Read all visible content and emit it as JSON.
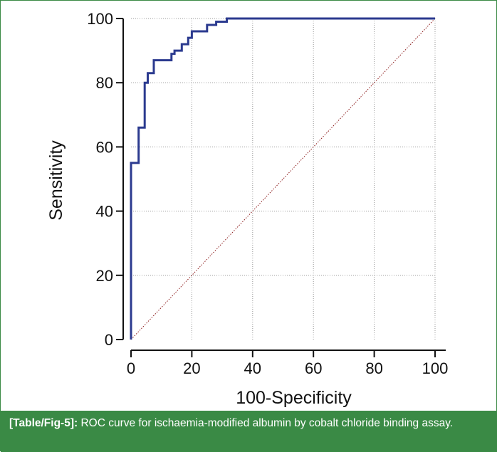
{
  "caption": {
    "label": "[Table/Fig-5]:",
    "text": "ROC curve for ischaemia-modified albumin by cobalt chloride binding assay."
  },
  "colors": {
    "roc_line": "#2b3a8f",
    "diagonal": "#8b1a1a",
    "grid": "#9a9a9a",
    "axis": "#111111",
    "caption_bg": "#3a8a45",
    "caption_text": "#ffffff"
  },
  "chart_data": {
    "type": "line",
    "title": "",
    "xlabel": "100-Specificity",
    "ylabel": "Sensitivity",
    "xlim": [
      0,
      100
    ],
    "ylim": [
      0,
      100
    ],
    "xticks": [
      0,
      20,
      40,
      60,
      80,
      100
    ],
    "yticks": [
      0,
      20,
      40,
      60,
      80,
      100
    ],
    "grid": true,
    "series": [
      {
        "style": "step",
        "color": "#2b3a8f",
        "x": [
          0,
          0,
          2.5,
          2.5,
          4.5,
          4.5,
          5.5,
          5.5,
          7.5,
          7.5,
          13.3,
          13.3,
          14.3,
          14.3,
          16.7,
          16.7,
          18.8,
          18.8,
          20.0,
          20.0,
          25.0,
          25.0,
          28.0,
          28.0,
          31.5,
          31.5,
          100
        ],
        "y": [
          0,
          55,
          55,
          66,
          66,
          80,
          80,
          83,
          83,
          87,
          87,
          89,
          89,
          90,
          90,
          92,
          92,
          94,
          94,
          96,
          96,
          98,
          98,
          99,
          99,
          100,
          100
        ]
      },
      {
        "style": "dotted",
        "color": "#8b1a1a",
        "x": [
          0,
          100
        ],
        "y": [
          0,
          100
        ]
      }
    ]
  }
}
